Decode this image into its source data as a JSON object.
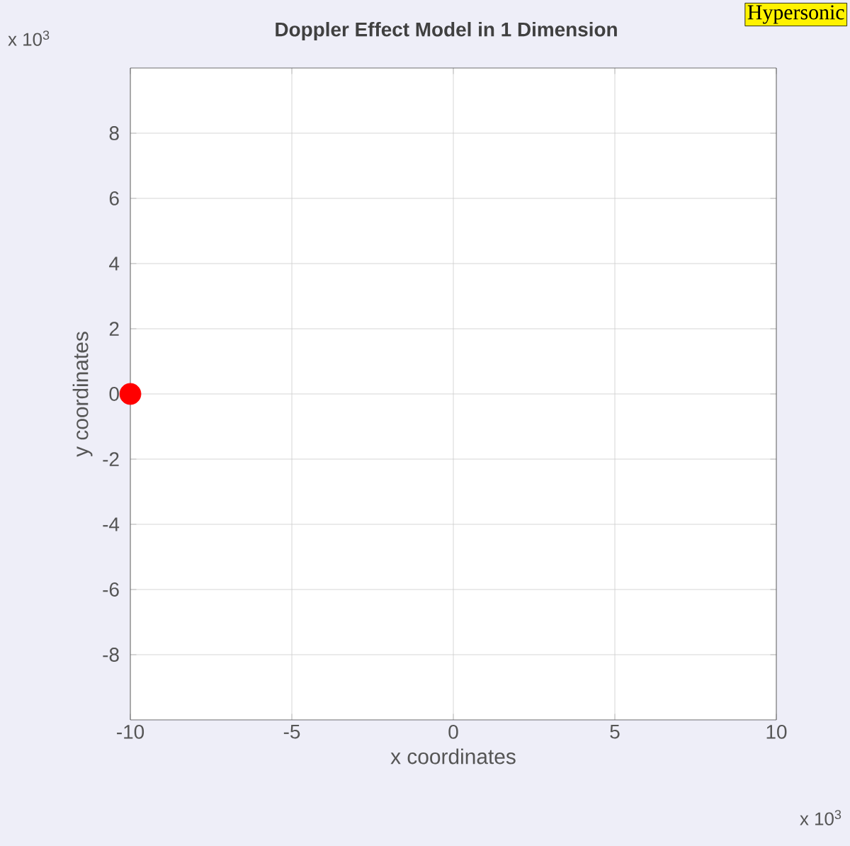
{
  "chart_data": {
    "type": "scatter",
    "title": "Doppler Effect Model in 1 Dimension",
    "xlabel": "x coordinates",
    "ylabel": "y coordinates",
    "annotations": [
      "Hypersonic",
      "x 10$^{3}$",
      "x 10$^{3}$"
    ],
    "x": [
      -10
    ],
    "values": [
      0
    ],
    "color": "#ff0000",
    "marker": "circle",
    "xlim": [
      -10,
      10
    ],
    "ylim": [
      -10,
      10
    ],
    "xticks": [
      -10,
      -5,
      0,
      5,
      10
    ],
    "yticks": [
      -8,
      -6,
      -4,
      -2,
      0,
      2,
      4,
      6,
      8
    ],
    "grid": true
  }
}
